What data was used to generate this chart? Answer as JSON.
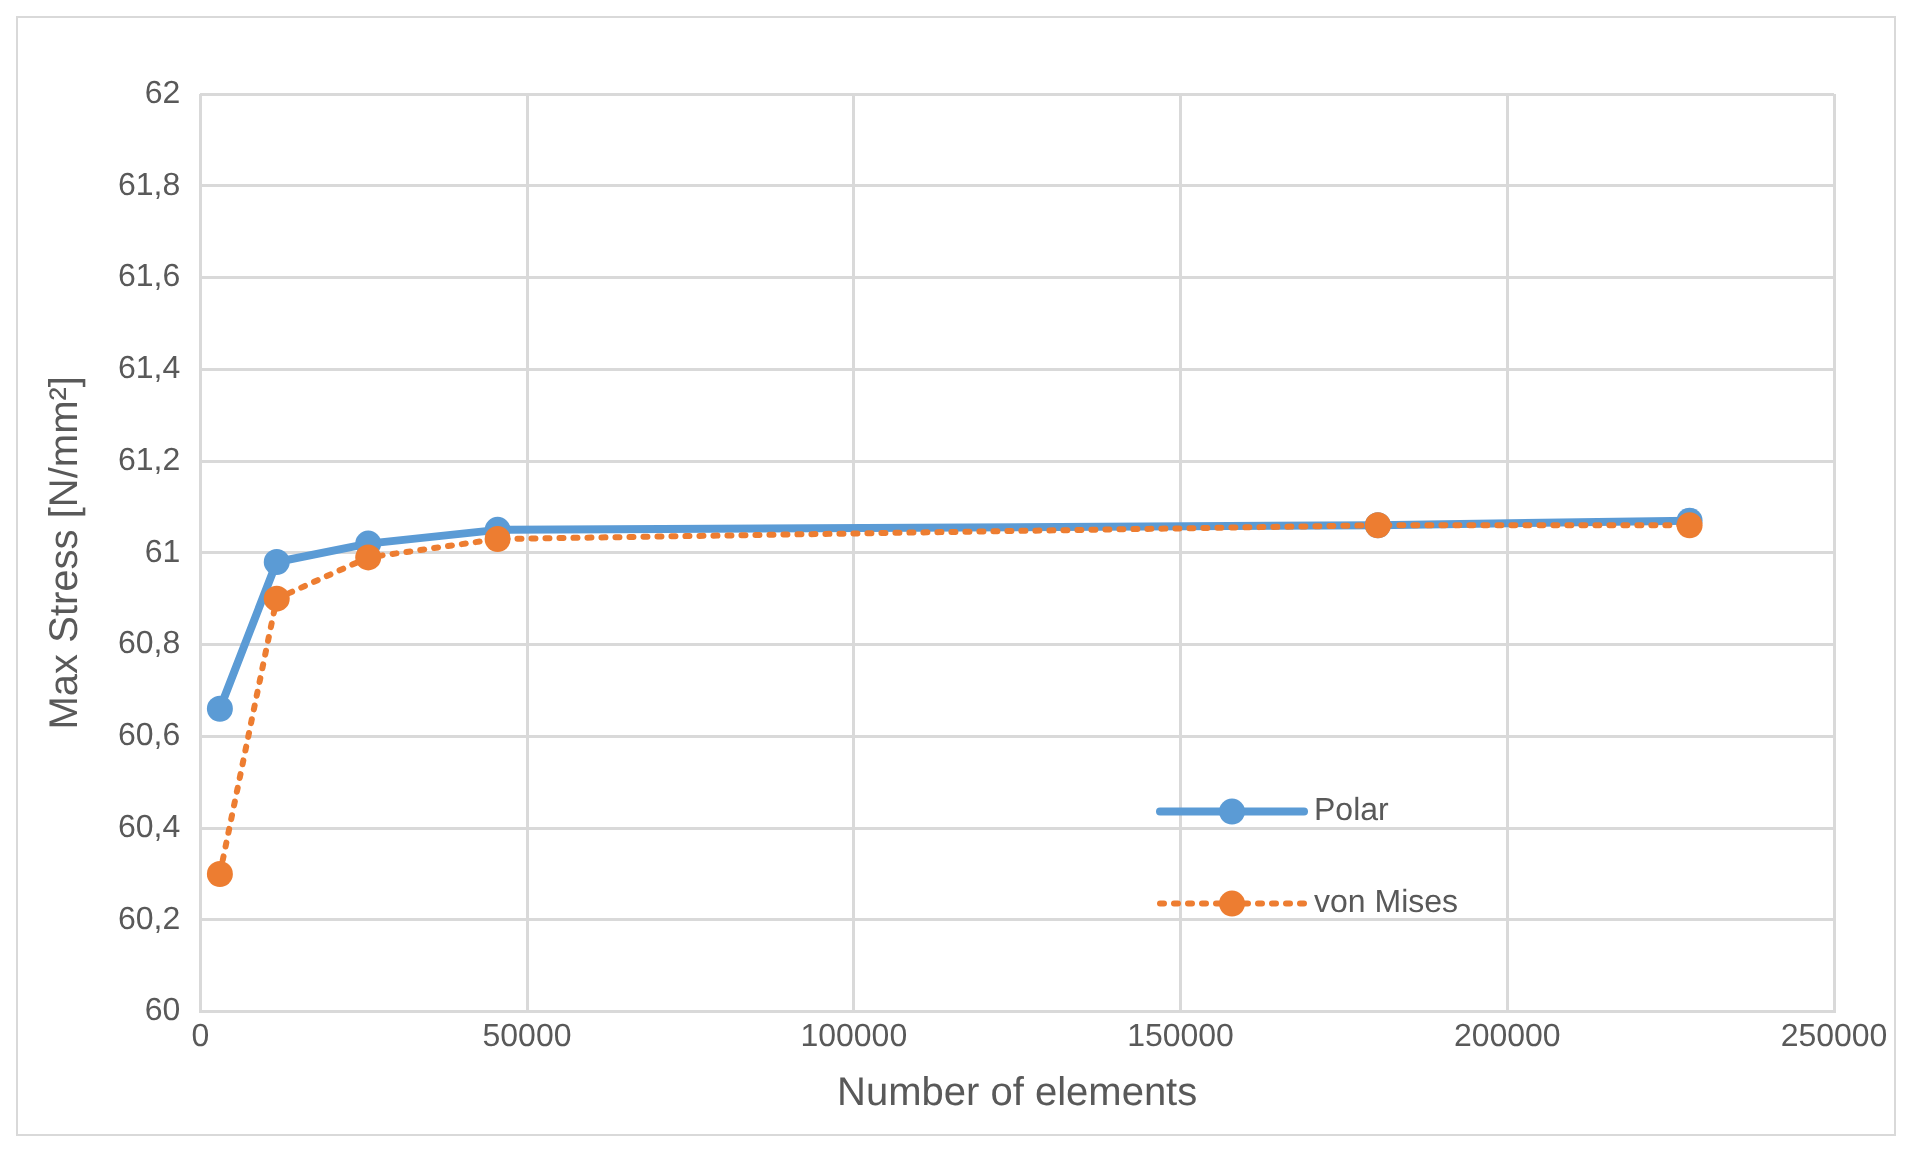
{
  "chart_data": {
    "type": "line",
    "xlabel": "Number of elements",
    "ylabel": "Max Stress [N/mm²]",
    "xlim": [
      0,
      250000
    ],
    "xticks": [
      0,
      50000,
      100000,
      150000,
      200000,
      250000
    ],
    "ylim": [
      60,
      62
    ],
    "yticks": [
      60,
      {
        "value": 60.2,
        "label": "60,2"
      },
      {
        "value": 60.4,
        "label": "60,4"
      },
      {
        "value": 60.6,
        "label": "60,6"
      },
      {
        "value": 60.8,
        "label": "60,8"
      },
      61,
      {
        "value": 61.2,
        "label": "61,2"
      },
      {
        "value": 61.4,
        "label": "61,4"
      },
      {
        "value": 61.6,
        "label": "61,6"
      },
      {
        "value": 61.8,
        "label": "61,8"
      },
      62
    ],
    "grid": true,
    "legend": "bottom right",
    "marker": "circle",
    "series": [
      {
        "name": "Polar",
        "color": "#5b9bd5",
        "line_style": "solid",
        "x": [
          3000,
          11700,
          25700,
          45500,
          180200,
          227900
        ],
        "values": [
          60.66,
          60.98,
          61.02,
          61.05,
          61.06,
          61.07
        ]
      },
      {
        "name": "von Mises",
        "color": "#ed7d31",
        "line_style": "dotted",
        "x": [
          3000,
          11700,
          25700,
          45500,
          180200,
          227900
        ],
        "values": [
          60.3,
          60.9,
          60.99,
          61.03,
          61.06,
          61.06
        ]
      }
    ]
  }
}
